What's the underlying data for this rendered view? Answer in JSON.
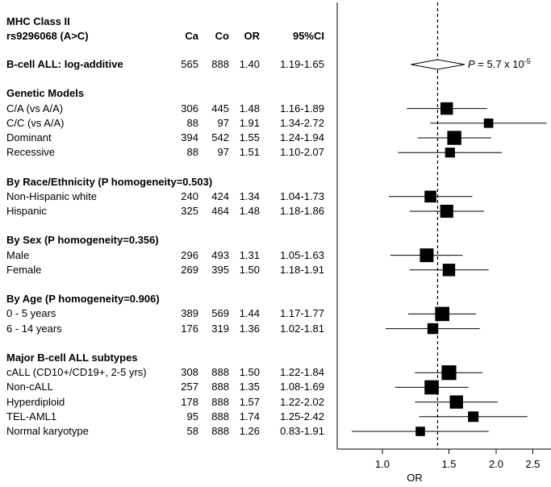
{
  "header": {
    "title_line1": "MHC Class II",
    "title_line2": "rs9296068 (A>C)",
    "col_ca": "Ca",
    "col_co": "Co",
    "col_or": "OR",
    "col_ci": "95%CI"
  },
  "pvalue_label": {
    "prefix": "P",
    "text": " = 5.7 x 10",
    "exp": "-5"
  },
  "chart_data": {
    "type": "forest",
    "xlabel": "OR",
    "x_scale": "log",
    "xlim": [
      0.7,
      2.6
    ],
    "x_ticks": [
      1.0,
      1.5,
      2.0,
      2.5
    ],
    "x_tick_labels": [
      "1.0",
      "1.5",
      "2.0",
      "2.5"
    ],
    "reference_line": 1.4,
    "rows": [
      {
        "kind": "header",
        "label": "B-cell ALL: log-additive",
        "ca": "565",
        "co": "888",
        "or": "1.40",
        "ci": "1.19-1.65",
        "or_value": 1.4,
        "lo": 1.19,
        "hi": 1.65,
        "marker": "diamond"
      },
      {
        "kind": "section",
        "label": "Genetic Models"
      },
      {
        "kind": "row",
        "label": "C/A (vs A/A)",
        "ca": "306",
        "co": "445",
        "or": "1.48",
        "ci": "1.16-1.89",
        "or_value": 1.48,
        "lo": 1.16,
        "hi": 1.89,
        "weight": 0.62
      },
      {
        "kind": "row",
        "label": "C/C (vs A/A)",
        "ca": "88",
        "co": "97",
        "or": "1.91",
        "ci": "1.34-2.72",
        "or_value": 1.91,
        "lo": 1.34,
        "hi": 2.72,
        "weight": 0.3
      },
      {
        "kind": "row",
        "label": "Dominant",
        "ca": "394",
        "co": "542",
        "or": "1.55",
        "ci": "1.24-1.94",
        "or_value": 1.55,
        "lo": 1.24,
        "hi": 1.94,
        "weight": 0.78
      },
      {
        "kind": "row",
        "label": "Recessive",
        "ca": "88",
        "co": "97",
        "or": "1.51",
        "ci": "1.10-2.07",
        "or_value": 1.51,
        "lo": 1.1,
        "hi": 2.07,
        "weight": 0.35
      },
      {
        "kind": "section",
        "label": "By Race/Ethnicity (P homogeneity=0.503)"
      },
      {
        "kind": "row",
        "label": "Non-Hispanic white",
        "ca": "240",
        "co": "424",
        "or": "1.34",
        "ci": "1.04-1.73",
        "or_value": 1.34,
        "lo": 1.04,
        "hi": 1.73,
        "weight": 0.55
      },
      {
        "kind": "row",
        "label": "Hispanic",
        "ca": "325",
        "co": "464",
        "or": "1.48",
        "ci": "1.18-1.86",
        "or_value": 1.48,
        "lo": 1.18,
        "hi": 1.86,
        "weight": 0.68
      },
      {
        "kind": "section",
        "label": "By Sex (P homogeneity=0.356)"
      },
      {
        "kind": "row",
        "label": "Male",
        "ca": "296",
        "co": "493",
        "or": "1.31",
        "ci": "1.05-1.63",
        "or_value": 1.31,
        "lo": 1.05,
        "hi": 1.63,
        "weight": 0.75
      },
      {
        "kind": "row",
        "label": "Female",
        "ca": "269",
        "co": "395",
        "or": "1.50",
        "ci": "1.18-1.91",
        "or_value": 1.5,
        "lo": 1.18,
        "hi": 1.91,
        "weight": 0.62
      },
      {
        "kind": "section",
        "label": "By Age (P homogeneity=0.906)"
      },
      {
        "kind": "row",
        "label": "0 - 5 years",
        "ca": "389",
        "co": "569",
        "or": "1.44",
        "ci": "1.17-1.77",
        "or_value": 1.44,
        "lo": 1.17,
        "hi": 1.77,
        "weight": 0.8
      },
      {
        "kind": "row",
        "label": "6 - 14 years",
        "ca": "176",
        "co": "319",
        "or": "1.36",
        "ci": "1.02-1.81",
        "or_value": 1.36,
        "lo": 1.02,
        "hi": 1.81,
        "weight": 0.45
      },
      {
        "kind": "section",
        "label": "Major B-cell ALL subtypes"
      },
      {
        "kind": "row",
        "label": "cALL (CD10+/CD19+, 2-5 yrs)",
        "ca": "308",
        "co": "888",
        "or": "1.50",
        "ci": "1.22-1.84",
        "or_value": 1.5,
        "lo": 1.22,
        "hi": 1.84,
        "weight": 0.85
      },
      {
        "kind": "row",
        "label": "Non-cALL",
        "ca": "257",
        "co": "888",
        "or": "1.35",
        "ci": "1.08-1.69",
        "or_value": 1.35,
        "lo": 1.08,
        "hi": 1.69,
        "weight": 0.8
      },
      {
        "kind": "row",
        "label": "Hyperdiploid",
        "ca": "178",
        "co": "888",
        "or": "1.57",
        "ci": "1.22-2.02",
        "or_value": 1.57,
        "lo": 1.22,
        "hi": 2.02,
        "weight": 0.7
      },
      {
        "kind": "row",
        "label": "TEL-AML1",
        "ca": "95",
        "co": "888",
        "or": "1.74",
        "ci": "1.25-2.42",
        "or_value": 1.74,
        "lo": 1.25,
        "hi": 2.42,
        "weight": 0.42
      },
      {
        "kind": "row",
        "label": "Normal karyotype",
        "ca": "58",
        "co": "888",
        "or": "1.26",
        "ci": "0.83-1.91",
        "or_value": 1.26,
        "lo": 0.83,
        "hi": 1.91,
        "weight": 0.3
      }
    ]
  }
}
